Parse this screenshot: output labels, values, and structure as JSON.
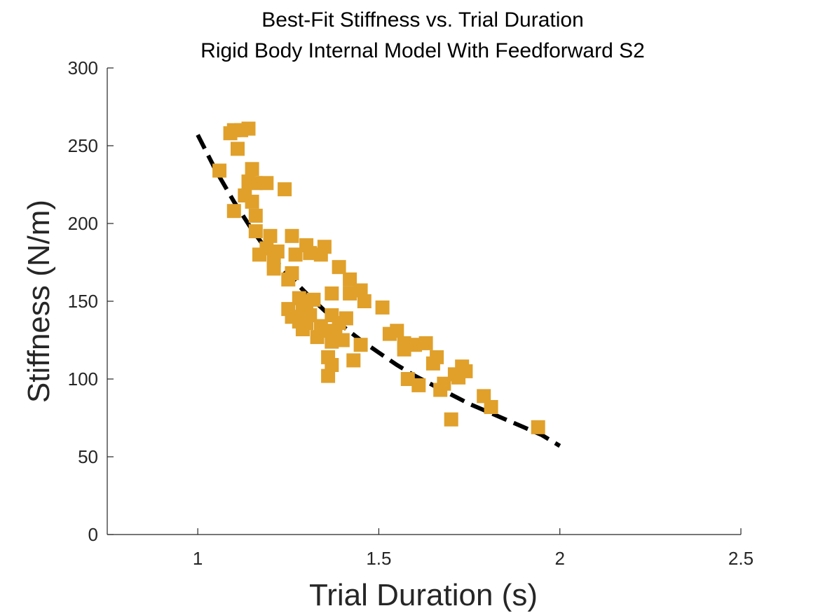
{
  "chart_data": {
    "type": "scatter",
    "title": "Best-Fit Stiffness vs. Trial Duration",
    "subtitle": "Rigid Body Internal Model With Feedforward S2",
    "xlabel": "Trial Duration (s)",
    "ylabel": "Stiffness (N/m)",
    "xlim": [
      0.75,
      2.5
    ],
    "ylim": [
      0,
      300
    ],
    "xticks": [
      1,
      1.5,
      2,
      2.5
    ],
    "xtick_labels": [
      "1",
      "1.5",
      "2",
      "2.5"
    ],
    "yticks": [
      0,
      50,
      100,
      150,
      200,
      250,
      300
    ],
    "ytick_labels": [
      "0",
      "50",
      "100",
      "150",
      "200",
      "250",
      "300"
    ],
    "grid": false,
    "box": "left-bottom axes only",
    "series": [
      {
        "kind": "scatter",
        "marker": "square",
        "color": "#E0A02A",
        "points": [
          [
            1.06,
            234
          ],
          [
            1.09,
            258
          ],
          [
            1.1,
            260
          ],
          [
            1.12,
            260
          ],
          [
            1.14,
            261
          ],
          [
            1.11,
            248
          ],
          [
            1.13,
            218
          ],
          [
            1.1,
            208
          ],
          [
            1.14,
            227
          ],
          [
            1.15,
            235
          ],
          [
            1.16,
            226
          ],
          [
            1.19,
            226
          ],
          [
            1.24,
            222
          ],
          [
            1.15,
            214
          ],
          [
            1.16,
            205
          ],
          [
            1.16,
            195
          ],
          [
            1.17,
            180
          ],
          [
            1.19,
            184
          ],
          [
            1.2,
            192
          ],
          [
            1.21,
            181
          ],
          [
            1.21,
            176
          ],
          [
            1.21,
            171
          ],
          [
            1.22,
            182
          ],
          [
            1.25,
            164
          ],
          [
            1.26,
            168
          ],
          [
            1.26,
            192
          ],
          [
            1.27,
            180
          ],
          [
            1.31,
            181
          ],
          [
            1.3,
            186
          ],
          [
            1.34,
            180
          ],
          [
            1.35,
            185
          ],
          [
            1.25,
            145
          ],
          [
            1.26,
            140
          ],
          [
            1.28,
            152
          ],
          [
            1.29,
            145
          ],
          [
            1.3,
            150
          ],
          [
            1.32,
            151
          ],
          [
            1.28,
            137
          ],
          [
            1.3,
            136
          ],
          [
            1.29,
            132
          ],
          [
            1.31,
            141
          ],
          [
            1.34,
            134
          ],
          [
            1.33,
            127
          ],
          [
            1.36,
            131
          ],
          [
            1.37,
            124
          ],
          [
            1.38,
            129
          ],
          [
            1.4,
            125
          ],
          [
            1.37,
            141
          ],
          [
            1.39,
            136
          ],
          [
            1.41,
            139
          ],
          [
            1.37,
            155
          ],
          [
            1.42,
            155
          ],
          [
            1.39,
            172
          ],
          [
            1.42,
            164
          ],
          [
            1.45,
            157
          ],
          [
            1.46,
            150
          ],
          [
            1.36,
            114
          ],
          [
            1.37,
            109
          ],
          [
            1.36,
            102
          ],
          [
            1.43,
            112
          ],
          [
            1.45,
            122
          ],
          [
            1.51,
            146
          ],
          [
            1.53,
            129
          ],
          [
            1.55,
            131
          ],
          [
            1.57,
            123
          ],
          [
            1.57,
            119
          ],
          [
            1.58,
            100
          ],
          [
            1.6,
            122
          ],
          [
            1.63,
            123
          ],
          [
            1.61,
            96
          ],
          [
            1.65,
            110
          ],
          [
            1.66,
            114
          ],
          [
            1.67,
            93
          ],
          [
            1.68,
            97
          ],
          [
            1.71,
            103
          ],
          [
            1.72,
            101
          ],
          [
            1.73,
            108
          ],
          [
            1.74,
            105
          ],
          [
            1.7,
            74
          ],
          [
            1.79,
            89
          ],
          [
            1.81,
            82
          ],
          [
            1.94,
            69
          ]
        ]
      },
      {
        "kind": "fit-curve",
        "line_style": "dashed",
        "color": "#000000",
        "x": [
          1.0,
          1.05,
          1.1,
          1.15,
          1.2,
          1.25,
          1.3,
          1.35,
          1.4,
          1.45,
          1.5,
          1.55,
          1.6,
          1.65,
          1.7,
          1.75,
          1.8,
          1.85,
          1.9,
          1.95,
          2.0
        ],
        "y": [
          257,
          234,
          214,
          196,
          180,
          167,
          155,
          144,
          134,
          125,
          117,
          109,
          102,
          96,
          90,
          84,
          79,
          74,
          69,
          64,
          57
        ]
      }
    ]
  }
}
